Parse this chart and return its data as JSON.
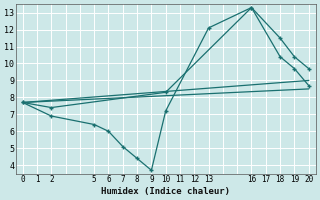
{
  "xlabel": "Humidex (Indice chaleur)",
  "bg_color": "#cde8e8",
  "grid_color": "#ffffff",
  "line_color": "#1a7070",
  "xlim": [
    -0.5,
    20.5
  ],
  "ylim": [
    3.5,
    13.5
  ],
  "xticks_all": [
    0,
    1,
    2,
    3,
    4,
    5,
    6,
    7,
    8,
    9,
    10,
    11,
    12,
    13,
    14,
    15,
    16,
    17,
    18,
    19,
    20
  ],
  "xticks_labeled": [
    0,
    1,
    2,
    5,
    6,
    7,
    8,
    9,
    10,
    11,
    12,
    13,
    16,
    17,
    18,
    19,
    20
  ],
  "yticks": [
    4,
    5,
    6,
    7,
    8,
    9,
    10,
    11,
    12,
    13
  ],
  "lines": [
    {
      "x": [
        0,
        2,
        10,
        16,
        18,
        19,
        20
      ],
      "y": [
        7.7,
        7.4,
        8.3,
        13.3,
        11.5,
        10.4,
        9.7
      ],
      "marker": true
    },
    {
      "x": [
        0,
        2,
        5,
        6,
        7,
        8,
        9,
        10,
        13,
        16,
        18,
        19,
        20
      ],
      "y": [
        7.7,
        6.9,
        6.4,
        6.0,
        5.1,
        4.4,
        3.7,
        7.2,
        12.1,
        13.3,
        10.4,
        9.7,
        8.7
      ],
      "marker": true
    },
    {
      "x": [
        0,
        20
      ],
      "y": [
        7.7,
        9.0
      ],
      "marker": false
    },
    {
      "x": [
        0,
        20
      ],
      "y": [
        7.7,
        8.5
      ],
      "marker": false
    }
  ]
}
